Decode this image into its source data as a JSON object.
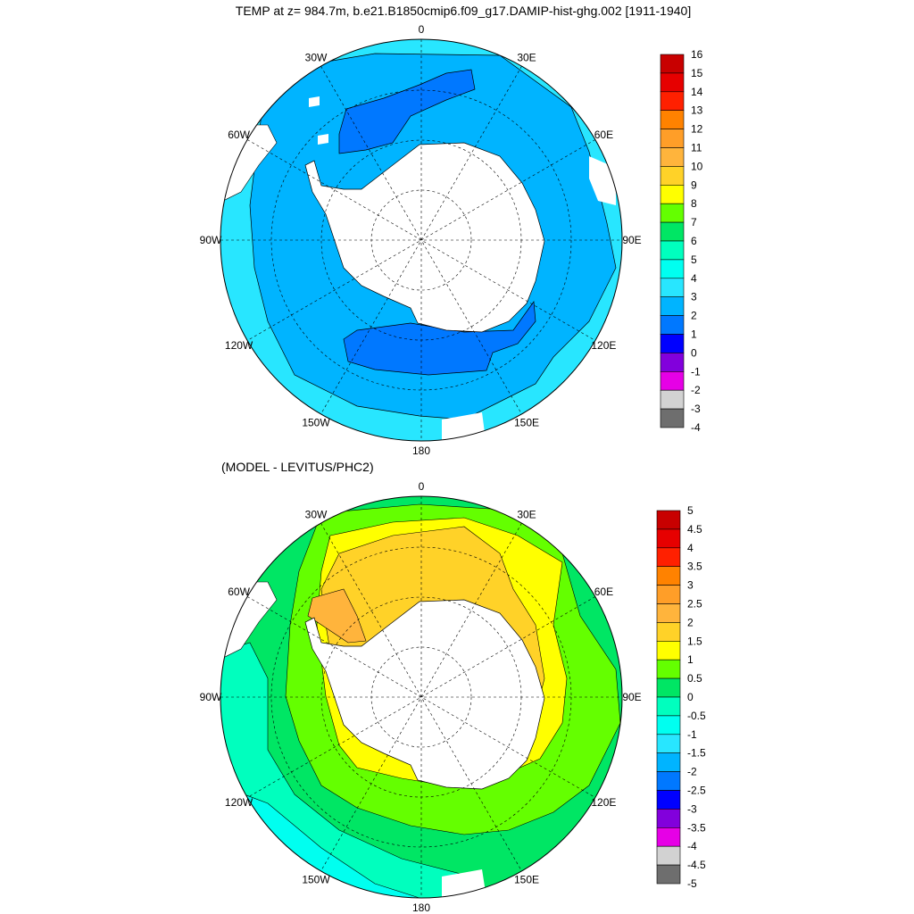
{
  "top_panel": {
    "title": "TEMP at z= 984.7m, b.e21.B1850cmip6.f09_g17.DAMIP-hist-ghg.002 [1911-1940]",
    "lon_labels": [
      {
        "text": "0",
        "lon": 0
      },
      {
        "text": "30E",
        "lon": 30
      },
      {
        "text": "60E",
        "lon": 60
      },
      {
        "text": "90E",
        "lon": 90
      },
      {
        "text": "120E",
        "lon": 120
      },
      {
        "text": "150E",
        "lon": 150
      },
      {
        "text": "180",
        "lon": 180
      },
      {
        "text": "150W",
        "lon": -150
      },
      {
        "text": "120W",
        "lon": -120
      },
      {
        "text": "90W",
        "lon": -90
      },
      {
        "text": "60W",
        "lon": -60
      },
      {
        "text": "30W",
        "lon": -30
      }
    ],
    "colorbar": {
      "labels": [
        "16",
        "15",
        "14",
        "13",
        "12",
        "11",
        "10",
        "9",
        "8",
        "7",
        "6",
        "5",
        "4",
        "3",
        "2",
        "1",
        "0",
        "-1",
        "-2",
        "-3",
        "-4"
      ],
      "colors": [
        "#c80000",
        "#e60000",
        "#ff2000",
        "#ff8200",
        "#ff9e28",
        "#ffb43c",
        "#ffd228",
        "#ffff00",
        "#64ff00",
        "#00e664",
        "#00ffbe",
        "#00fff0",
        "#28e6ff",
        "#00b4ff",
        "#0078ff",
        "#0000ff",
        "#8200dc",
        "#e600e6",
        "#d2d2d2",
        "#6e6e6e"
      ]
    }
  },
  "bottom_panel": {
    "title": "(MODEL - LEVITUS/PHC2)",
    "lon_labels": [
      {
        "text": "0",
        "lon": 0
      },
      {
        "text": "30E",
        "lon": 30
      },
      {
        "text": "60E",
        "lon": 60
      },
      {
        "text": "90E",
        "lon": 90
      },
      {
        "text": "120E",
        "lon": 120
      },
      {
        "text": "150E",
        "lon": 150
      },
      {
        "text": "180",
        "lon": 180
      },
      {
        "text": "150W",
        "lon": -150
      },
      {
        "text": "120W",
        "lon": -120
      },
      {
        "text": "90W",
        "lon": -90
      },
      {
        "text": "60W",
        "lon": -60
      },
      {
        "text": "30W",
        "lon": -30
      }
    ],
    "colorbar": {
      "labels": [
        "5",
        "4.5",
        "4",
        "3.5",
        "3",
        "2.5",
        "2",
        "1.5",
        "1",
        "0.5",
        "0",
        "-0.5",
        "-1",
        "-1.5",
        "-2",
        "-2.5",
        "-3",
        "-3.5",
        "-4",
        "-4.5",
        "-5"
      ],
      "colors": [
        "#c80000",
        "#e60000",
        "#ff2000",
        "#ff8200",
        "#ff9e28",
        "#ffb43c",
        "#ffd228",
        "#ffff00",
        "#64ff00",
        "#00e664",
        "#00ffbe",
        "#00fff0",
        "#28e6ff",
        "#00b4ff",
        "#0078ff",
        "#0000ff",
        "#8200dc",
        "#e600e6",
        "#d2d2d2",
        "#6e6e6e"
      ]
    }
  },
  "colors": {
    "land": "#ffffff",
    "outline": "#000000",
    "top_ocean_main": "#00b4ff",
    "top_ocean_outer": "#28e6ff",
    "top_ocean_cold": "#0078ff",
    "bot_fill_green": "#64ff00",
    "bot_fill_dark_green": "#00e664",
    "bot_fill_yellow": "#ffff00",
    "bot_fill_gold": "#ffd228",
    "bot_fill_orange": "#ffb43c",
    "bot_fill_turquoise": "#00ffbe",
    "bot_fill_cyan": "#00fff0"
  }
}
